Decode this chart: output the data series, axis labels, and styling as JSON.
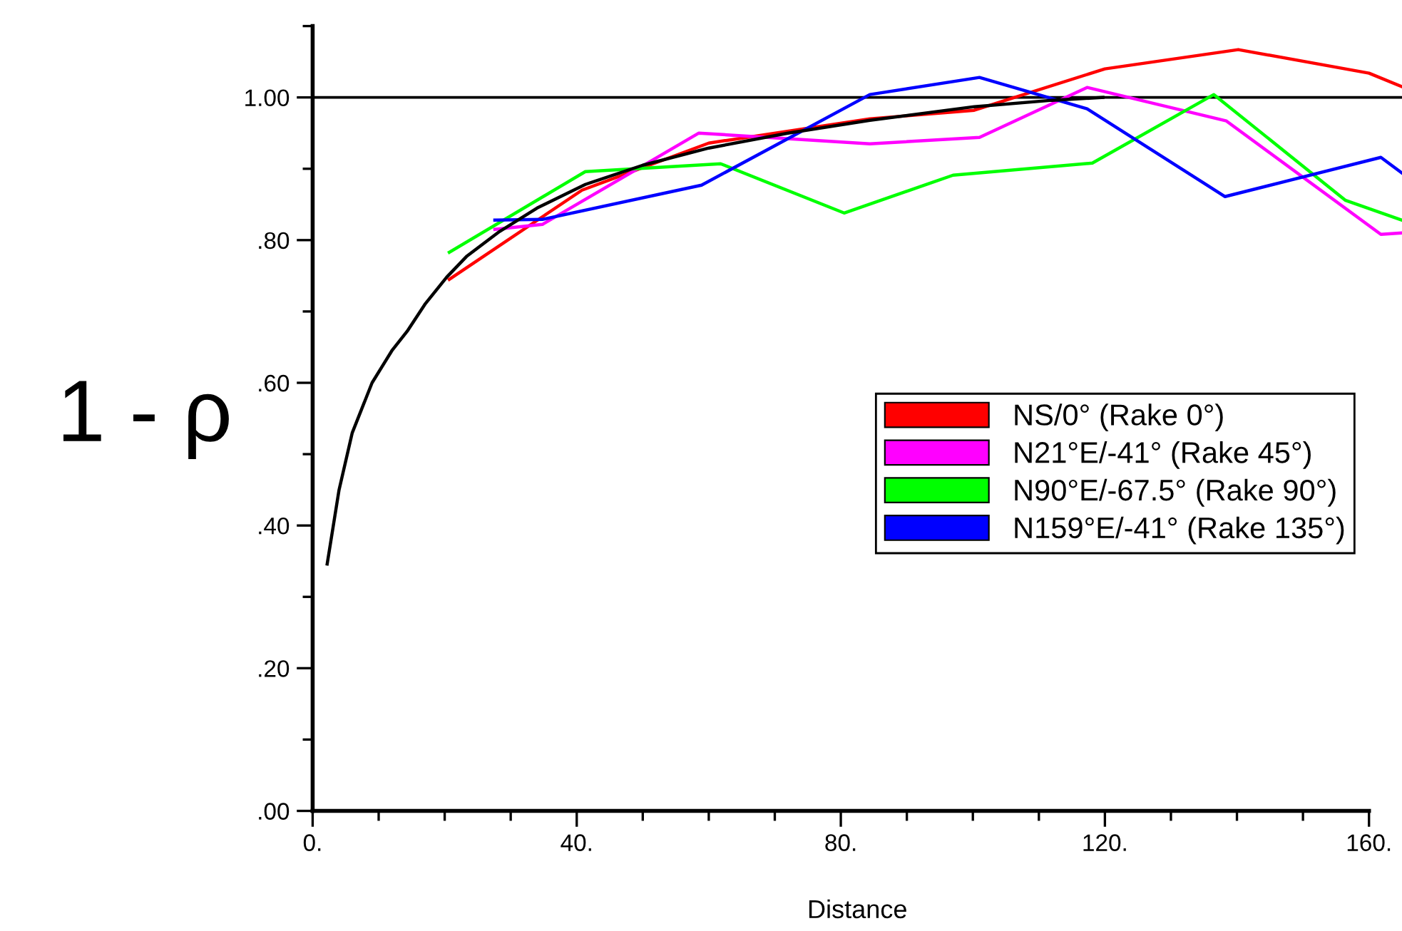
{
  "chart_data": {
    "type": "line",
    "xlabel": "Distance",
    "ylabel": "1 - ρ",
    "xlim": [
      0,
      165
    ],
    "ylim": [
      0,
      1.1
    ],
    "xticks": [
      {
        "value": 0,
        "label": "0."
      },
      {
        "value": 40,
        "label": "40."
      },
      {
        "value": 80,
        "label": "80."
      },
      {
        "value": 120,
        "label": "120."
      },
      {
        "value": 160,
        "label": "160."
      }
    ],
    "yticks": [
      {
        "value": 0,
        "label": ".00"
      },
      {
        "value": 0.2,
        "label": ".20"
      },
      {
        "value": 0.4,
        "label": ".40"
      },
      {
        "value": 0.6,
        "label": ".60"
      },
      {
        "value": 0.8,
        "label": ".80"
      },
      {
        "value": 1.0,
        "label": "1.00"
      }
    ],
    "grid": false,
    "legend": "right",
    "marker": "none",
    "line_style": "solid",
    "ref_lines": [
      {
        "axis": "y",
        "value": 1.0,
        "label": null,
        "color": "#000000"
      }
    ],
    "series": [
      {
        "name": "NS/0° (Rake 0°)",
        "color": "#ff0000",
        "x": [
          20.7,
          40.8,
          60,
          84.4,
          100.2,
          120,
          140.2,
          160,
          165
        ],
        "values": [
          0.745,
          0.87,
          0.936,
          0.97,
          0.982,
          1.04,
          1.067,
          1.034,
          1.015
        ]
      },
      {
        "name": "N21°E/-41° (Rake 45°)",
        "color": "#ff00ff",
        "x": [
          27.6,
          34.8,
          58.5,
          84.4,
          101,
          117.3,
          138.4,
          161.8,
          165
        ],
        "values": [
          0.815,
          0.822,
          0.95,
          0.935,
          0.944,
          1.014,
          0.967,
          0.808,
          0.81
        ]
      },
      {
        "name": "N90°E/-67.5° (Rake 90°)",
        "color": "#00ff00",
        "x": [
          20.7,
          41.3,
          61.8,
          80.5,
          97,
          118.1,
          136.5,
          156.4,
          165
        ],
        "values": [
          0.783,
          0.896,
          0.907,
          0.838,
          0.891,
          0.908,
          1.004,
          0.856,
          0.828
        ]
      },
      {
        "name": "N159°E/-41° (Rake 135°)",
        "color": "#0000ff",
        "x": [
          27.6,
          34.8,
          58.9,
          84.4,
          101,
          117.3,
          138.2,
          161.8,
          165
        ],
        "values": [
          0.828,
          0.829,
          0.877,
          1.004,
          1.028,
          0.984,
          0.861,
          0.916,
          0.894
        ]
      },
      {
        "color": "#000000",
        "x": [
          2.2,
          4,
          6,
          9,
          12,
          14.3,
          17,
          20.3,
          23.3,
          28.3,
          34,
          41.3,
          50,
          60,
          72,
          84.4,
          100.2,
          112,
          119.7
        ],
        "values": [
          0.346,
          0.45,
          0.53,
          0.6,
          0.645,
          0.672,
          0.71,
          0.748,
          0.777,
          0.812,
          0.845,
          0.878,
          0.905,
          0.929,
          0.95,
          0.968,
          0.987,
          0.996,
          1.0
        ]
      }
    ]
  }
}
